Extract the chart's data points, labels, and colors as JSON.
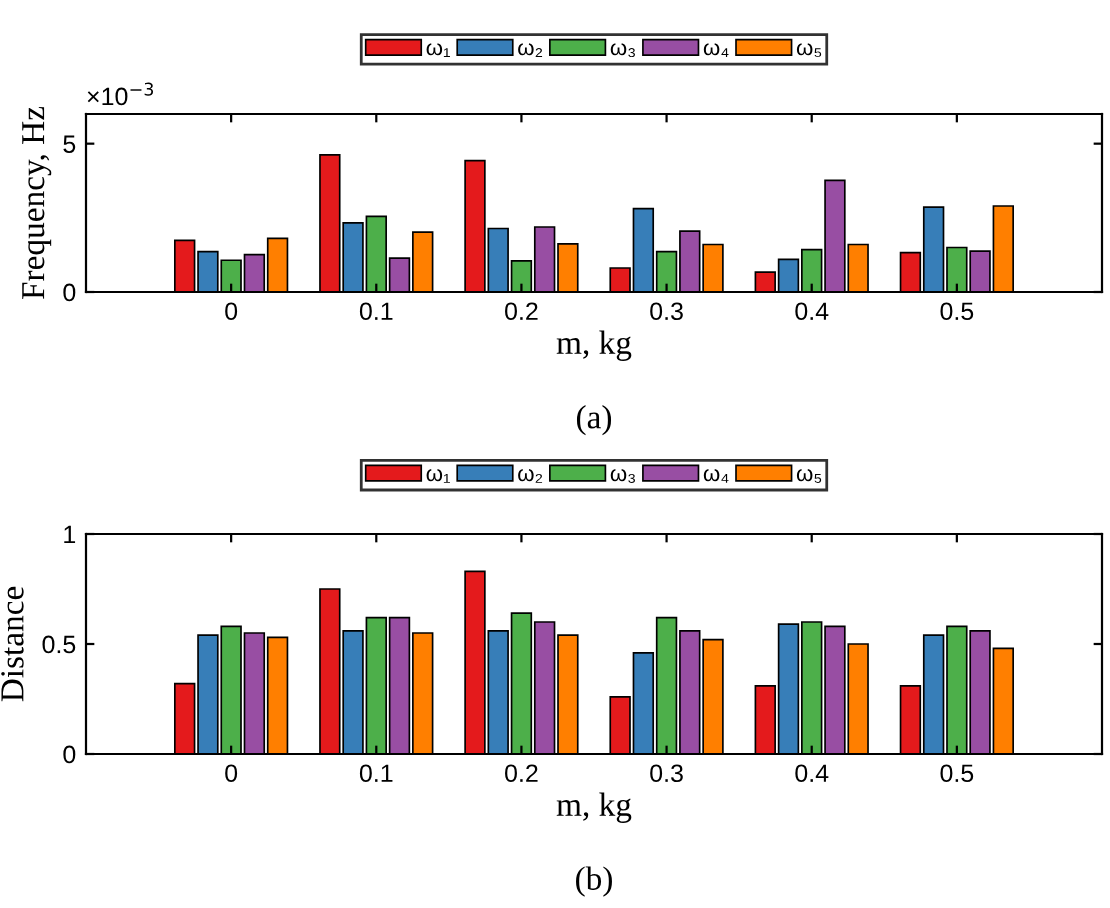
{
  "chart_data": [
    {
      "type": "bar",
      "ylabel": "Frequency, Hz",
      "xlabel": "m, kg",
      "annotations": [
        "×10$^{−3}$",
        "(a)"
      ],
      "categories": [
        "0",
        "0.1",
        "0.2",
        "0.3",
        "0.4",
        "0.5"
      ],
      "series": [
        {
          "name": "ω₁",
          "color": "#e41a1c",
          "values": [
            1.74,
            4.62,
            4.43,
            0.81,
            0.67,
            1.33
          ]
        },
        {
          "name": "ω₂",
          "color": "#377eb8",
          "values": [
            1.36,
            2.33,
            2.14,
            2.81,
            1.1,
            2.86
          ]
        },
        {
          "name": "ω₃",
          "color": "#4daf4a",
          "values": [
            1.07,
            2.55,
            1.05,
            1.36,
            1.43,
            1.5
          ]
        },
        {
          "name": "ω₄",
          "color": "#984ea3",
          "values": [
            1.26,
            1.14,
            2.19,
            2.05,
            3.76,
            1.38
          ]
        },
        {
          "name": "ω₅",
          "color": "#ff7f00",
          "values": [
            1.81,
            2.02,
            1.62,
            1.6,
            1.6,
            2.9
          ]
        }
      ],
      "ylim": [
        0,
        6
      ],
      "yticks": [
        0,
        5
      ],
      "legend": "top",
      "grid": false
    },
    {
      "type": "bar",
      "ylabel": "Distance",
      "xlabel": "m, kg",
      "annotations": [
        "(b)"
      ],
      "categories": [
        "0",
        "0.1",
        "0.2",
        "0.3",
        "0.4",
        "0.5"
      ],
      "series": [
        {
          "name": "ω₁",
          "color": "#e41a1c",
          "values": [
            0.32,
            0.75,
            0.83,
            0.26,
            0.31,
            0.31
          ]
        },
        {
          "name": "ω₂",
          "color": "#377eb8",
          "values": [
            0.54,
            0.56,
            0.56,
            0.46,
            0.59,
            0.54
          ]
        },
        {
          "name": "ω₃",
          "color": "#4daf4a",
          "values": [
            0.58,
            0.62,
            0.64,
            0.62,
            0.6,
            0.58
          ]
        },
        {
          "name": "ω₄",
          "color": "#984ea3",
          "values": [
            0.55,
            0.62,
            0.6,
            0.56,
            0.58,
            0.56
          ]
        },
        {
          "name": "ω₅",
          "color": "#ff7f00",
          "values": [
            0.53,
            0.55,
            0.54,
            0.52,
            0.5,
            0.48
          ]
        }
      ],
      "ylim": [
        0,
        1
      ],
      "yticks": [
        0,
        0.5,
        1
      ],
      "legend": "top",
      "grid": false
    }
  ]
}
